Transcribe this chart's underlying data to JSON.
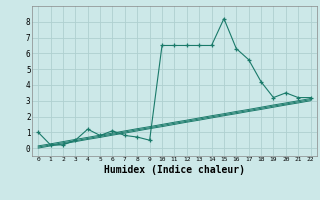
{
  "x": [
    0,
    1,
    2,
    3,
    4,
    5,
    6,
    7,
    8,
    9,
    10,
    11,
    12,
    13,
    14,
    15,
    16,
    17,
    18,
    19,
    20,
    21,
    22
  ],
  "y_main": [
    1.0,
    0.2,
    0.2,
    0.5,
    1.2,
    0.8,
    1.1,
    0.8,
    0.7,
    0.5,
    6.5,
    6.5,
    6.5,
    6.5,
    6.5,
    8.2,
    6.3,
    5.6,
    4.2,
    3.2,
    3.5,
    3.2,
    3.2
  ],
  "y_line1": [
    0.0,
    0.14,
    0.27,
    0.41,
    0.55,
    0.68,
    0.82,
    0.95,
    1.09,
    1.23,
    1.36,
    1.5,
    1.64,
    1.77,
    1.91,
    2.05,
    2.18,
    2.32,
    2.45,
    2.59,
    2.73,
    2.86,
    3.0
  ],
  "y_line2": [
    0.07,
    0.2,
    0.34,
    0.47,
    0.61,
    0.75,
    0.88,
    1.02,
    1.16,
    1.29,
    1.43,
    1.57,
    1.7,
    1.84,
    1.98,
    2.11,
    2.25,
    2.38,
    2.52,
    2.66,
    2.79,
    2.93,
    3.07
  ],
  "y_line3": [
    0.14,
    0.27,
    0.41,
    0.55,
    0.68,
    0.82,
    0.95,
    1.09,
    1.23,
    1.36,
    1.5,
    1.64,
    1.77,
    1.91,
    2.05,
    2.18,
    2.32,
    2.45,
    2.59,
    2.73,
    2.86,
    3.0,
    3.14
  ],
  "line_color": "#1a7a6a",
  "bg_color": "#cce8e8",
  "grid_color": "#afd0d0",
  "xlabel": "Humidex (Indice chaleur)",
  "xlabel_fontsize": 7,
  "ylim": [
    -0.5,
    9.0
  ],
  "xlim": [
    -0.5,
    22.5
  ],
  "yticks": [
    0,
    1,
    2,
    3,
    4,
    5,
    6,
    7,
    8
  ],
  "xticks": [
    0,
    1,
    2,
    3,
    4,
    5,
    6,
    7,
    8,
    9,
    10,
    11,
    12,
    13,
    14,
    15,
    16,
    17,
    18,
    19,
    20,
    21,
    22
  ]
}
